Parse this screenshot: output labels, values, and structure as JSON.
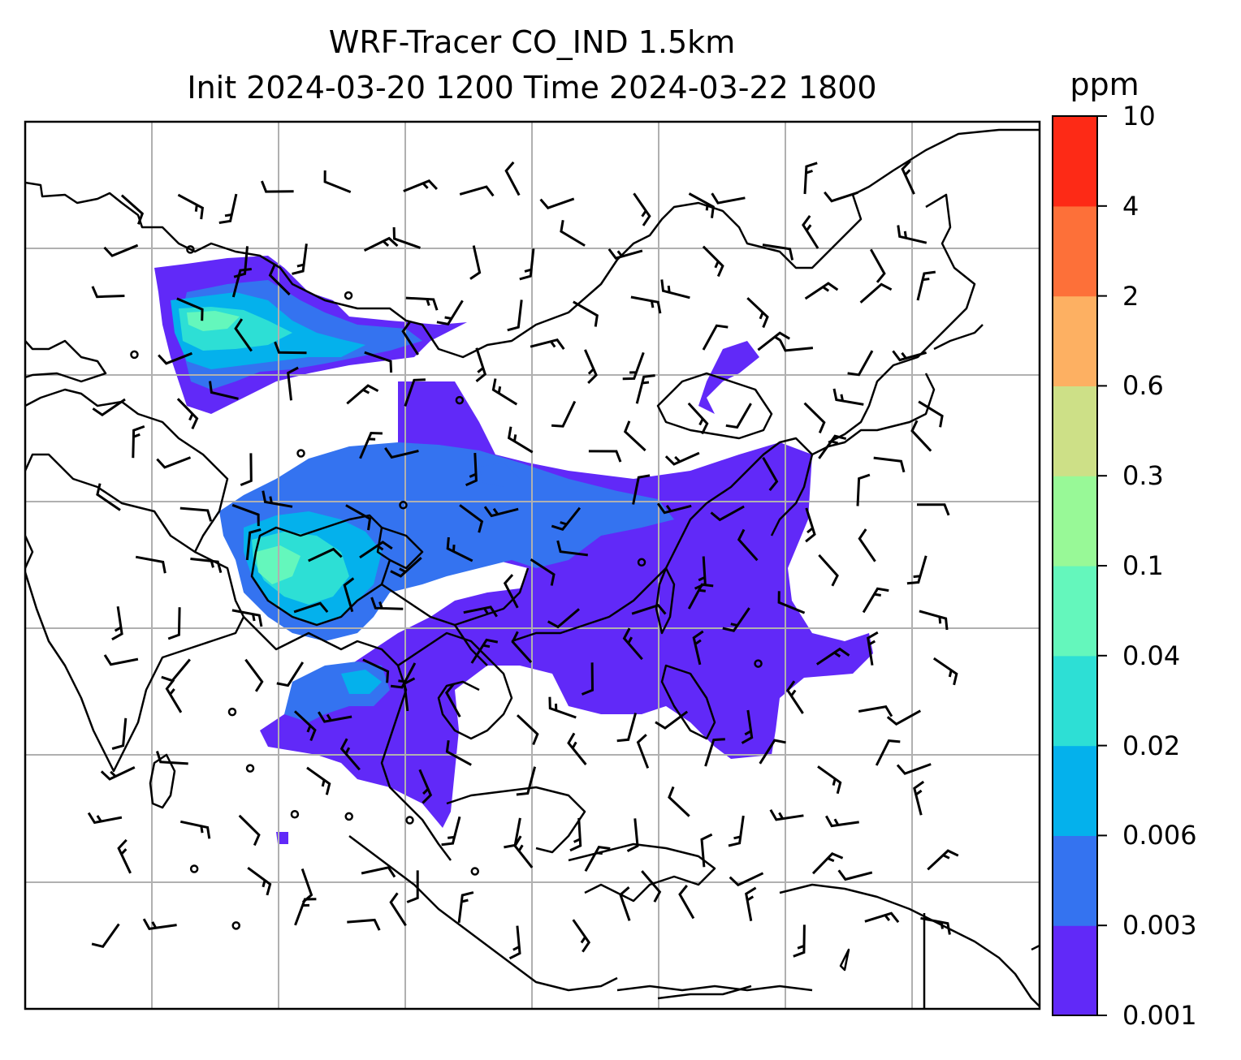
{
  "title": {
    "line1": "WRF-Tracer CO_IND 1.5km",
    "line2": "Init 2024-03-20 1200 Time 2024-03-22 1800"
  },
  "colorbar": {
    "unit": "ppm",
    "levels": [
      "0.001",
      "0.003",
      "0.006",
      "0.02",
      "0.04",
      "0.1",
      "0.3",
      "0.6",
      "2",
      "4",
      "10"
    ],
    "colors": [
      "#6129f8",
      "#3473f0",
      "#04b1ec",
      "#2ddfd5",
      "#64f7bc",
      "#98f997",
      "#cde087",
      "#fdb062",
      "#fd7039",
      "#fd2a16"
    ]
  },
  "map": {
    "gridlines": true,
    "tracer_field": "CO_IND",
    "wind": "barbs"
  }
}
